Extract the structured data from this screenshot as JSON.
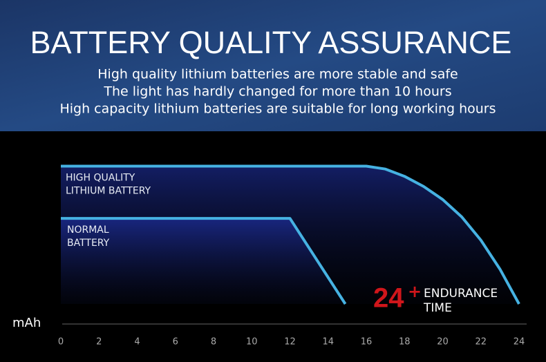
{
  "chart_data": {
    "type": "line",
    "title": "BATTERY QUALITY ASSURANCE",
    "subtitle": [
      "High quality lithium batteries are more stable and safe",
      "The light has hardly changed for more than 10 hours",
      "High capacity lithium batteries are suitable for long working hours"
    ],
    "y_label": "mAh",
    "xlim": [
      0,
      24
    ],
    "xticks": [
      0,
      2,
      4,
      6,
      8,
      10,
      12,
      14,
      16,
      18,
      20,
      22,
      24
    ],
    "ylim": [
      0,
      100
    ],
    "series": [
      {
        "name": [
          "HIGH QUALITY",
          "LITHIUM BATTERY"
        ],
        "color": "#46b2e2",
        "x": [
          0,
          16,
          17,
          18,
          19,
          20,
          21,
          22,
          23,
          24
        ],
        "values": [
          95,
          95,
          93,
          88,
          81,
          72,
          60,
          44,
          24,
          0
        ]
      },
      {
        "name": [
          "NORMAL",
          "BATTERY"
        ],
        "color": "#46b2e2",
        "x": [
          0,
          12,
          14.9
        ],
        "values": [
          59,
          59,
          0
        ]
      }
    ],
    "annotation": {
      "value": 24,
      "sup": "+",
      "text": [
        "ENDURANCE",
        "TIME"
      ],
      "color": "#d0161b"
    }
  }
}
